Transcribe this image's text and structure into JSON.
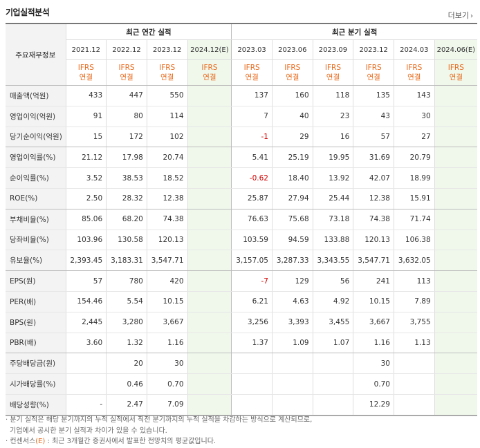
{
  "panel": {
    "title": "기업실적분석",
    "more_label": "더보기",
    "more_icon": "chevron-right-icon"
  },
  "table": {
    "label_header": "주요재무정보",
    "annual_group": "최근 연간 실적",
    "quarter_group": "최근 분기 실적",
    "periods": [
      "2021.12",
      "2022.12",
      "2023.12",
      "2024.12(E)",
      "2023.03",
      "2023.06",
      "2023.09",
      "2023.12",
      "2024.03",
      "2024.06(E)"
    ],
    "ifrs_line1": "IFRS",
    "ifrs_line2": "연결",
    "rows": [
      {
        "label": "매출액(억원)",
        "values": [
          "433",
          "447",
          "550",
          "",
          "137",
          "160",
          "118",
          "135",
          "143",
          ""
        ]
      },
      {
        "label": "영업이익(억원)",
        "values": [
          "91",
          "80",
          "114",
          "",
          "7",
          "40",
          "23",
          "43",
          "30",
          ""
        ]
      },
      {
        "label": "당기순이익(억원)",
        "values": [
          "15",
          "172",
          "102",
          "",
          "-1",
          "29",
          "16",
          "57",
          "27",
          ""
        ]
      },
      {
        "label": "영업이익률(%)",
        "values": [
          "21.12",
          "17.98",
          "20.74",
          "",
          "5.41",
          "25.19",
          "19.95",
          "31.69",
          "20.79",
          ""
        ]
      },
      {
        "label": "순이익률(%)",
        "values": [
          "3.52",
          "38.53",
          "18.52",
          "",
          "-0.62",
          "18.40",
          "13.92",
          "42.07",
          "18.99",
          ""
        ]
      },
      {
        "label": "ROE(%)",
        "values": [
          "2.50",
          "28.32",
          "12.38",
          "",
          "25.87",
          "27.94",
          "25.44",
          "12.38",
          "15.91",
          ""
        ]
      },
      {
        "label": "부채비율(%)",
        "values": [
          "85.06",
          "68.20",
          "74.38",
          "",
          "76.63",
          "75.68",
          "73.18",
          "74.38",
          "71.74",
          ""
        ]
      },
      {
        "label": "당좌비율(%)",
        "values": [
          "103.96",
          "130.58",
          "120.13",
          "",
          "103.59",
          "94.59",
          "133.88",
          "120.13",
          "106.38",
          ""
        ]
      },
      {
        "label": "유보율(%)",
        "values": [
          "2,393.45",
          "3,183.31",
          "3,547.71",
          "",
          "3,157.05",
          "3,287.33",
          "3,343.55",
          "3,547.71",
          "3,632.05",
          ""
        ]
      },
      {
        "label": "EPS(원)",
        "values": [
          "57",
          "780",
          "420",
          "",
          "-7",
          "129",
          "56",
          "241",
          "113",
          ""
        ]
      },
      {
        "label": "PER(배)",
        "values": [
          "154.46",
          "5.54",
          "10.15",
          "",
          "6.21",
          "4.63",
          "4.92",
          "10.15",
          "7.89",
          ""
        ]
      },
      {
        "label": "BPS(원)",
        "values": [
          "2,445",
          "3,280",
          "3,667",
          "",
          "3,256",
          "3,393",
          "3,455",
          "3,667",
          "3,755",
          ""
        ]
      },
      {
        "label": "PBR(배)",
        "values": [
          "3.60",
          "1.32",
          "1.16",
          "",
          "1.37",
          "1.09",
          "1.07",
          "1.16",
          "1.13",
          ""
        ]
      },
      {
        "label": "주당배당금(원)",
        "values": [
          "",
          "20",
          "30",
          "",
          "",
          "",
          "",
          "30",
          "",
          ""
        ]
      },
      {
        "label": "시가배당률(%)",
        "values": [
          "",
          "0.46",
          "0.70",
          "",
          "",
          "",
          "",
          "0.70",
          "",
          ""
        ]
      },
      {
        "label": "배당성향(%)",
        "values": [
          "-",
          "2.47",
          "7.09",
          "",
          "",
          "",
          "",
          "12.29",
          "",
          ""
        ]
      }
    ]
  },
  "notes": {
    "line1": "· 분기 실적은 해당 분기까지의 누적 실적에서 직전 분기까지의 누적 실적을 차감하는 방식으로 계산되므로,",
    "line2": "기업에서 공시한 분기 실적과 차이가 있을 수 있습니다.",
    "line3_prefix": "· 컨센서스",
    "line3_e": "(E)",
    "line3_suffix": ": 최근 3개월간 증권사에서 발표한 전망치의 평균값입니다."
  },
  "colors": {
    "estimate_bg": "#f0f8ec",
    "ifrs_text": "#e8691b",
    "negative_text": "#d20000",
    "label_bg": "#f3f3f3"
  }
}
